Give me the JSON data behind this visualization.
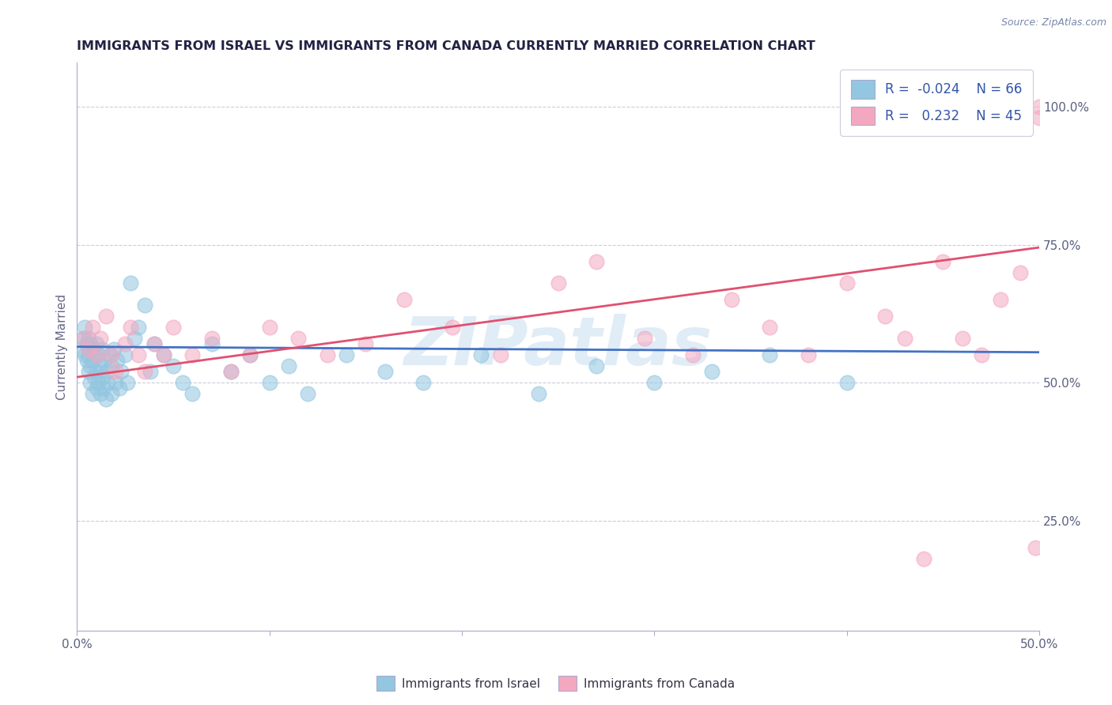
{
  "title": "IMMIGRANTS FROM ISRAEL VS IMMIGRANTS FROM CANADA CURRENTLY MARRIED CORRELATION CHART",
  "source": "Source: ZipAtlas.com",
  "ylabel": "Currently Married",
  "ytick_labels": [
    "25.0%",
    "50.0%",
    "75.0%",
    "100.0%"
  ],
  "ytick_values": [
    0.25,
    0.5,
    0.75,
    1.0
  ],
  "xmin": 0.0,
  "xmax": 0.5,
  "ymin": 0.05,
  "ymax": 1.08,
  "color_israel": "#93c6e0",
  "color_canada": "#f4a8c0",
  "trend_israel_color": "#4472c4",
  "trend_canada_color": "#e05070",
  "watermark_color": "#cce0f0",
  "israel_x": [
    0.002,
    0.003,
    0.004,
    0.004,
    0.005,
    0.005,
    0.006,
    0.006,
    0.006,
    0.007,
    0.007,
    0.007,
    0.008,
    0.008,
    0.009,
    0.009,
    0.01,
    0.01,
    0.01,
    0.011,
    0.011,
    0.012,
    0.012,
    0.013,
    0.013,
    0.014,
    0.014,
    0.015,
    0.015,
    0.016,
    0.017,
    0.018,
    0.018,
    0.019,
    0.02,
    0.021,
    0.022,
    0.023,
    0.025,
    0.026,
    0.028,
    0.03,
    0.032,
    0.035,
    0.038,
    0.04,
    0.045,
    0.05,
    0.055,
    0.06,
    0.07,
    0.08,
    0.09,
    0.1,
    0.11,
    0.12,
    0.14,
    0.16,
    0.18,
    0.21,
    0.24,
    0.27,
    0.3,
    0.33,
    0.36,
    0.4
  ],
  "israel_y": [
    0.56,
    0.58,
    0.55,
    0.6,
    0.54,
    0.57,
    0.52,
    0.55,
    0.58,
    0.5,
    0.53,
    0.57,
    0.48,
    0.54,
    0.51,
    0.56,
    0.49,
    0.52,
    0.57,
    0.5,
    0.55,
    0.48,
    0.53,
    0.51,
    0.56,
    0.49,
    0.54,
    0.47,
    0.52,
    0.5,
    0.55,
    0.48,
    0.53,
    0.56,
    0.5,
    0.54,
    0.49,
    0.52,
    0.55,
    0.5,
    0.68,
    0.58,
    0.6,
    0.64,
    0.52,
    0.57,
    0.55,
    0.53,
    0.5,
    0.48,
    0.57,
    0.52,
    0.55,
    0.5,
    0.53,
    0.48,
    0.55,
    0.52,
    0.5,
    0.55,
    0.48,
    0.53,
    0.5,
    0.52,
    0.55,
    0.5
  ],
  "canada_x": [
    0.004,
    0.006,
    0.008,
    0.01,
    0.012,
    0.015,
    0.018,
    0.02,
    0.025,
    0.028,
    0.032,
    0.035,
    0.04,
    0.045,
    0.05,
    0.06,
    0.07,
    0.08,
    0.09,
    0.1,
    0.115,
    0.13,
    0.15,
    0.17,
    0.195,
    0.22,
    0.25,
    0.27,
    0.295,
    0.32,
    0.34,
    0.36,
    0.38,
    0.4,
    0.42,
    0.43,
    0.44,
    0.45,
    0.46,
    0.47,
    0.48,
    0.49,
    0.5,
    0.5,
    0.498
  ],
  "canada_y": [
    0.58,
    0.56,
    0.6,
    0.55,
    0.58,
    0.62,
    0.55,
    0.52,
    0.57,
    0.6,
    0.55,
    0.52,
    0.57,
    0.55,
    0.6,
    0.55,
    0.58,
    0.52,
    0.55,
    0.6,
    0.58,
    0.55,
    0.57,
    0.65,
    0.6,
    0.55,
    0.68,
    0.72,
    0.58,
    0.55,
    0.65,
    0.6,
    0.55,
    0.68,
    0.62,
    0.58,
    0.18,
    0.72,
    0.58,
    0.55,
    0.65,
    0.7,
    0.98,
    1.0,
    0.2
  ],
  "israel_trend_x0": 0.0,
  "israel_trend_x1": 0.5,
  "israel_trend_y0": 0.565,
  "israel_trend_y1": 0.555,
  "canada_trend_x0": 0.0,
  "canada_trend_x1": 0.5,
  "canada_trend_y0": 0.51,
  "canada_trend_y1": 0.745
}
